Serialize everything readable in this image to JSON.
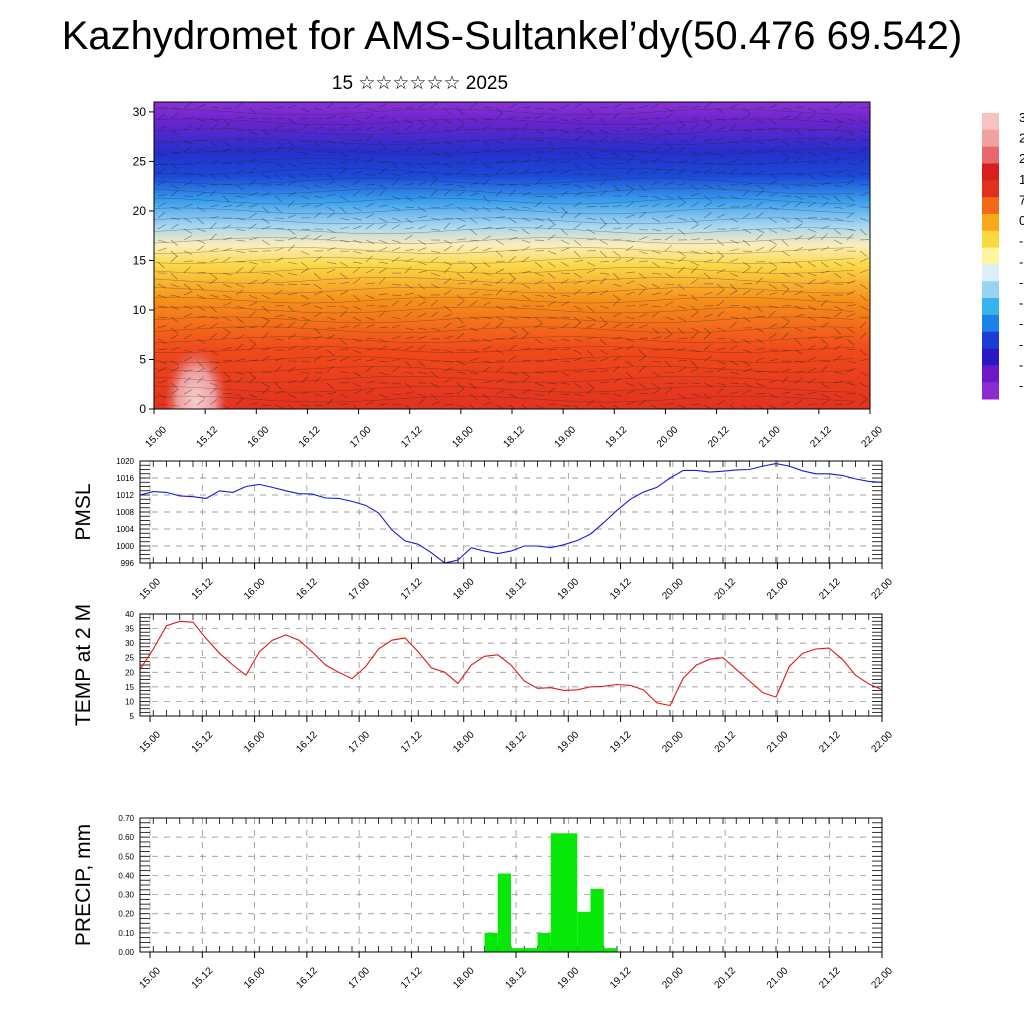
{
  "header": {
    "title": "Kazhydromet for AMS-Sultankel’dy(50.476 69.542)",
    "date_label": "15 ☆☆☆☆☆☆ 2025"
  },
  "x_ticks": [
    "15.00",
    "15.12",
    "16.00",
    "16.12",
    "17.00",
    "17.12",
    "18.00",
    "18.12",
    "19.00",
    "19.12",
    "20.00",
    "20.12",
    "21.00",
    "21.12",
    "22.00"
  ],
  "colorbar": {
    "colors": [
      "#f7c2c2",
      "#f2a0a0",
      "#e66a6a",
      "#d81e1e",
      "#e0301e",
      "#f06a18",
      "#f8a818",
      "#fbd840",
      "#fff4a0",
      "#ddeefa",
      "#9ad2f4",
      "#38b4ec",
      "#1c82e8",
      "#1c3cd6",
      "#2a18c8",
      "#6a18c8",
      "#8c2ad2"
    ],
    "labels": [
      "3",
      "2",
      "2",
      "1",
      "7",
      "0",
      "-",
      "-",
      "-",
      "-",
      "-",
      "-",
      "-",
      "-"
    ]
  },
  "chart_data": [
    {
      "type": "heatmap",
      "title": "",
      "ylabel": "",
      "ylim": [
        0,
        31
      ],
      "yticks": [
        0,
        5,
        10,
        15,
        20,
        25,
        30
      ],
      "colormap_stops": [
        {
          "level": 0,
          "color": "#e23220"
        },
        {
          "level": 6,
          "color": "#f04a1a"
        },
        {
          "level": 11,
          "color": "#f6901a"
        },
        {
          "level": 14.5,
          "color": "#fbd848"
        },
        {
          "level": 16.5,
          "color": "#fbeeb8"
        },
        {
          "level": 18.5,
          "color": "#a6d6f2"
        },
        {
          "level": 21,
          "color": "#3aa0ec"
        },
        {
          "level": 23.5,
          "color": "#1a4ad8"
        },
        {
          "level": 26,
          "color": "#2530cc"
        },
        {
          "level": 29,
          "color": "#6a24cc"
        },
        {
          "level": 31,
          "color": "#8a32d6"
        }
      ]
    },
    {
      "type": "line",
      "ylabel": "PMSL",
      "ylim": [
        996,
        1020
      ],
      "yticks": [
        996,
        1000,
        1004,
        1008,
        1012,
        1016,
        1020
      ],
      "color": "#1a1ad8",
      "x": [
        0,
        0.125,
        0.25,
        0.375,
        0.5,
        0.625,
        0.75,
        0.875,
        1,
        1.125,
        1.25,
        1.375,
        1.5,
        1.625,
        1.75,
        1.875,
        2,
        2.125,
        2.25,
        2.375,
        2.5,
        2.625,
        2.75,
        2.875,
        3,
        3.125,
        3.25,
        3.375,
        3.5,
        3.625,
        3.75,
        3.875,
        4,
        4.125,
        4.25,
        4.375,
        4.5,
        4.625,
        4.75,
        4.875,
        5,
        5.125,
        5.25,
        5.375,
        5.5,
        5.625,
        5.75,
        5.875,
        6,
        6.125,
        6.25,
        6.375,
        6.5,
        6.625,
        6.75,
        6.875,
        7
      ],
      "values": [
        1012,
        1012.8,
        1012.6,
        1011.8,
        1011.6,
        1011.2,
        1013,
        1012.6,
        1014,
        1014.5,
        1013.8,
        1013,
        1012.3,
        1012.2,
        1011.3,
        1011.2,
        1010.5,
        1009.6,
        1007.8,
        1003.8,
        1001.2,
        1000.4,
        998.4,
        996,
        996.7,
        999.6,
        998.8,
        998.2,
        998.8,
        1000,
        1000,
        999.6,
        1000.3,
        1001.3,
        1002.8,
        1005.5,
        1008.4,
        1011,
        1012.7,
        1013.8,
        1016,
        1017.8,
        1017.8,
        1017.4,
        1017.6,
        1017.9,
        1018,
        1018.8,
        1019.4,
        1018.8,
        1017.7,
        1017,
        1017,
        1016.6,
        1015.8,
        1015.2,
        1015
      ]
    },
    {
      "type": "line",
      "ylabel": "TEMP at 2 M",
      "ylim": [
        5,
        40
      ],
      "yticks": [
        5,
        10,
        15,
        20,
        25,
        30,
        35,
        40
      ],
      "color": "#e01818",
      "x": [
        0,
        0.125,
        0.25,
        0.375,
        0.5,
        0.625,
        0.75,
        0.875,
        1,
        1.125,
        1.25,
        1.375,
        1.5,
        1.625,
        1.75,
        1.875,
        2,
        2.125,
        2.25,
        2.375,
        2.5,
        2.625,
        2.75,
        2.875,
        3,
        3.125,
        3.25,
        3.375,
        3.5,
        3.625,
        3.75,
        3.875,
        4,
        4.125,
        4.25,
        4.375,
        4.5,
        4.625,
        4.75,
        4.875,
        5,
        5.125,
        5.25,
        5.375,
        5.5,
        5.625,
        5.75,
        5.875,
        6,
        6.125,
        6.25,
        6.375,
        6.5,
        6.625,
        6.75,
        6.875,
        7
      ],
      "values": [
        21,
        28,
        36,
        37.5,
        37.2,
        31.5,
        26.5,
        22.5,
        19,
        27,
        31,
        32.8,
        31,
        27,
        22.5,
        20,
        17.8,
        21.8,
        28,
        31,
        31.8,
        27,
        21.5,
        20,
        16.2,
        22.5,
        25.5,
        26,
        22.5,
        17,
        14.5,
        14.7,
        13.8,
        14,
        15,
        15.2,
        15.8,
        15.5,
        14,
        9.5,
        8.6,
        18,
        22.5,
        24.5,
        25,
        21,
        17,
        13,
        11.5,
        22,
        26.5,
        28,
        28.3,
        24.5,
        19,
        16,
        14
      ]
    },
    {
      "type": "bar",
      "ylabel": "PRECIP, mm",
      "ylim": [
        0,
        0.7
      ],
      "yticks": [
        "0.00",
        "0.10",
        "0.20",
        "0.30",
        "0.40",
        "0.50",
        "0.60",
        "0.70"
      ],
      "color": "#08e808",
      "x_start": [
        3.25,
        3.375,
        3.5,
        3.625,
        3.75,
        3.875,
        4,
        4.125,
        4.25,
        4.375
      ],
      "values": [
        0.1,
        0.41,
        0.02,
        0.02,
        0.1,
        0.62,
        0.62,
        0.21,
        0.33,
        0.02
      ]
    }
  ]
}
